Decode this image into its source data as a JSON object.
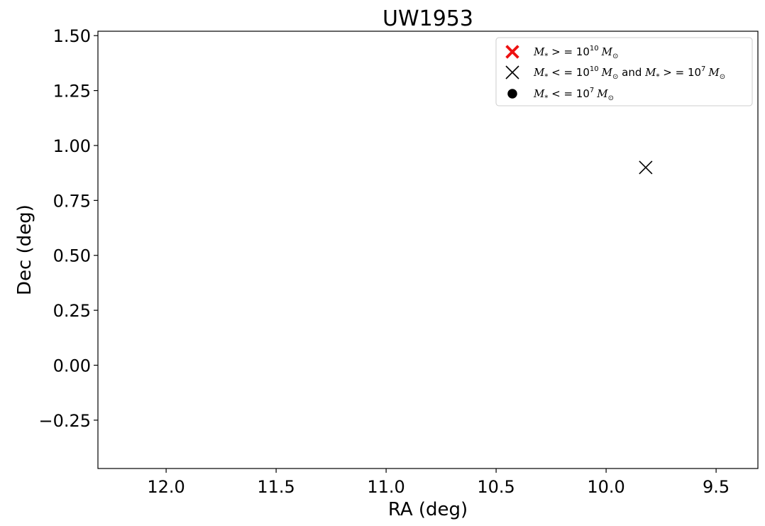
{
  "chart_data": {
    "type": "scatter",
    "title": "UW1953",
    "xlabel": "RA (deg)",
    "ylabel": "Dec (deg)",
    "xlim": [
      12.31,
      9.31
    ],
    "ylim": [
      -0.47,
      1.52
    ],
    "x_inverted": true,
    "grid": false,
    "legend_position": "top-right",
    "x_ticks": [
      {
        "value": 12.0,
        "label": "12.0"
      },
      {
        "value": 11.5,
        "label": "11.5"
      },
      {
        "value": 11.0,
        "label": "11.0"
      },
      {
        "value": 10.5,
        "label": "10.5"
      },
      {
        "value": 10.0,
        "label": "10.0"
      },
      {
        "value": 9.5,
        "label": "9.5"
      }
    ],
    "y_ticks": [
      {
        "value": 1.5,
        "label": "1.50"
      },
      {
        "value": 1.25,
        "label": "1.25"
      },
      {
        "value": 1.0,
        "label": "1.00"
      },
      {
        "value": 0.75,
        "label": "0.75"
      },
      {
        "value": 0.5,
        "label": "0.50"
      },
      {
        "value": 0.25,
        "label": "0.25"
      },
      {
        "value": 0.0,
        "label": "0.00"
      },
      {
        "value": -0.25,
        "label": "−0.25"
      }
    ],
    "series": [
      {
        "marker": "thick-x",
        "color": "#ee1111",
        "legend": {
          "m": "M",
          "sub": "*",
          "rel": " > = 10",
          "exp": "10",
          "tail_m": "M",
          "tail_sub": "⊙"
        },
        "points": []
      },
      {
        "marker": "x",
        "color": "#000000",
        "legend": {
          "m": "M",
          "sub": "*",
          "rel": " < = 10",
          "exp": "10",
          "tail_m": "M",
          "tail_sub": "⊙",
          "and": " and ",
          "m2": "M",
          "sub2": "*",
          "rel2": " > = 10",
          "exp2": "7",
          "tail_m2": "M",
          "tail_sub2": "⊙"
        },
        "points": [
          {
            "x": 9.82,
            "y": 0.9
          }
        ]
      },
      {
        "marker": "circle",
        "color": "#000000",
        "legend": {
          "m": "M",
          "sub": "*",
          "rel": " < = 10",
          "exp": "7",
          "tail_m": "M",
          "tail_sub": "⊙"
        },
        "points": []
      }
    ]
  }
}
